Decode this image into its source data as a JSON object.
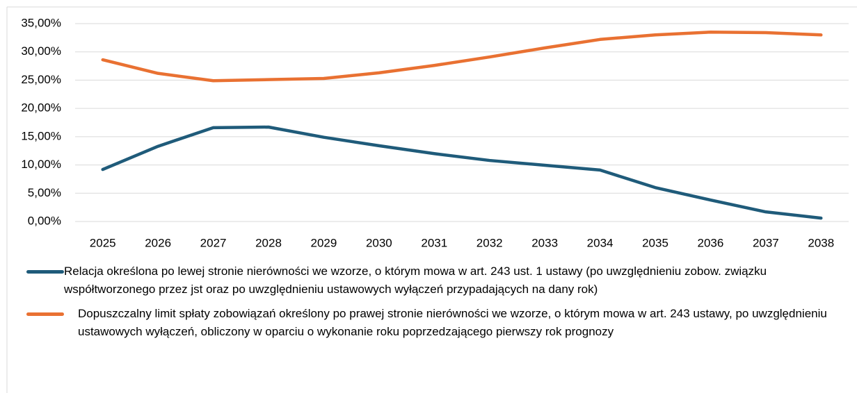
{
  "chart_data": {
    "type": "line",
    "categories": [
      "2025",
      "2026",
      "2027",
      "2028",
      "2029",
      "2030",
      "2031",
      "2032",
      "2033",
      "2034",
      "2035",
      "2036",
      "2037",
      "2038"
    ],
    "series": [
      {
        "name": "Relacja określona po lewej stronie nierówności we wzorze, o którym mowa w art. 243 ust. 1 ustawy (po uwzględnieniu zobow. związku współtworzonego przez jst oraz po uwzględnieniu ustawowych wyłączeń przypadających na dany rok)",
        "color": "#1f5b7a",
        "values": [
          9.2,
          13.3,
          16.6,
          16.7,
          14.9,
          13.4,
          12.0,
          10.8,
          9.95,
          9.1,
          6.0,
          3.8,
          1.7,
          0.6
        ]
      },
      {
        "name": "Dopuszczalny limit spłaty zobowiązań określony po prawej stronie nierówności we wzorze, o którym mowa w art. 243 ustawy, po uwzględnieniu ustawowych wyłączeń, obliczony w oparciu o wykonanie roku poprzedzającego pierwszy rok prognozy",
        "color": "#e97132",
        "values": [
          28.6,
          26.2,
          24.9,
          25.1,
          25.3,
          26.3,
          27.6,
          29.1,
          30.7,
          32.2,
          33.0,
          33.5,
          33.4,
          33.0
        ]
      }
    ],
    "ylim": [
      0,
      35
    ],
    "yticks": [
      {
        "value": 0,
        "label": "0,00%"
      },
      {
        "value": 5,
        "label": "5,00%"
      },
      {
        "value": 10,
        "label": "10,00%"
      },
      {
        "value": 15,
        "label": "15,00%"
      },
      {
        "value": 20,
        "label": "20,00%"
      },
      {
        "value": 25,
        "label": "25,00%"
      },
      {
        "value": 30,
        "label": "30,00%"
      },
      {
        "value": 35,
        "label": "35,00%"
      }
    ],
    "grid": true
  }
}
